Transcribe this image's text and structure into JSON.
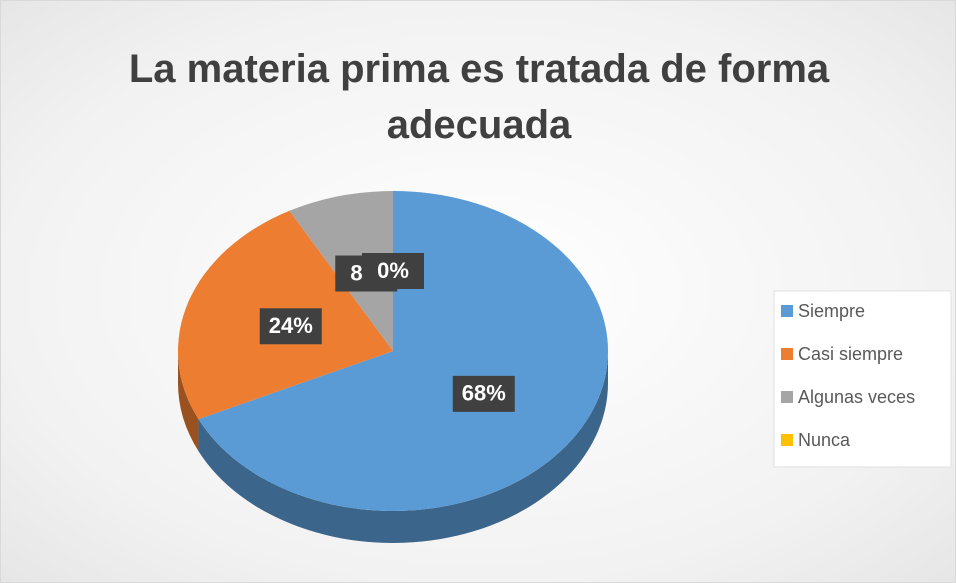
{
  "chart_data": {
    "type": "pie",
    "title": "La materia prima es tratada de forma adecuada",
    "categories": [
      "Siempre",
      "Casi siempre",
      "Algunas veces",
      "Nunca"
    ],
    "values": [
      68,
      24,
      8,
      0
    ],
    "value_labels": [
      "68%",
      "24%",
      "8%",
      "0%"
    ],
    "colors": [
      "#5b9bd5",
      "#ed7d31",
      "#a5a5a5",
      "#ffc000"
    ],
    "legend": "right"
  }
}
